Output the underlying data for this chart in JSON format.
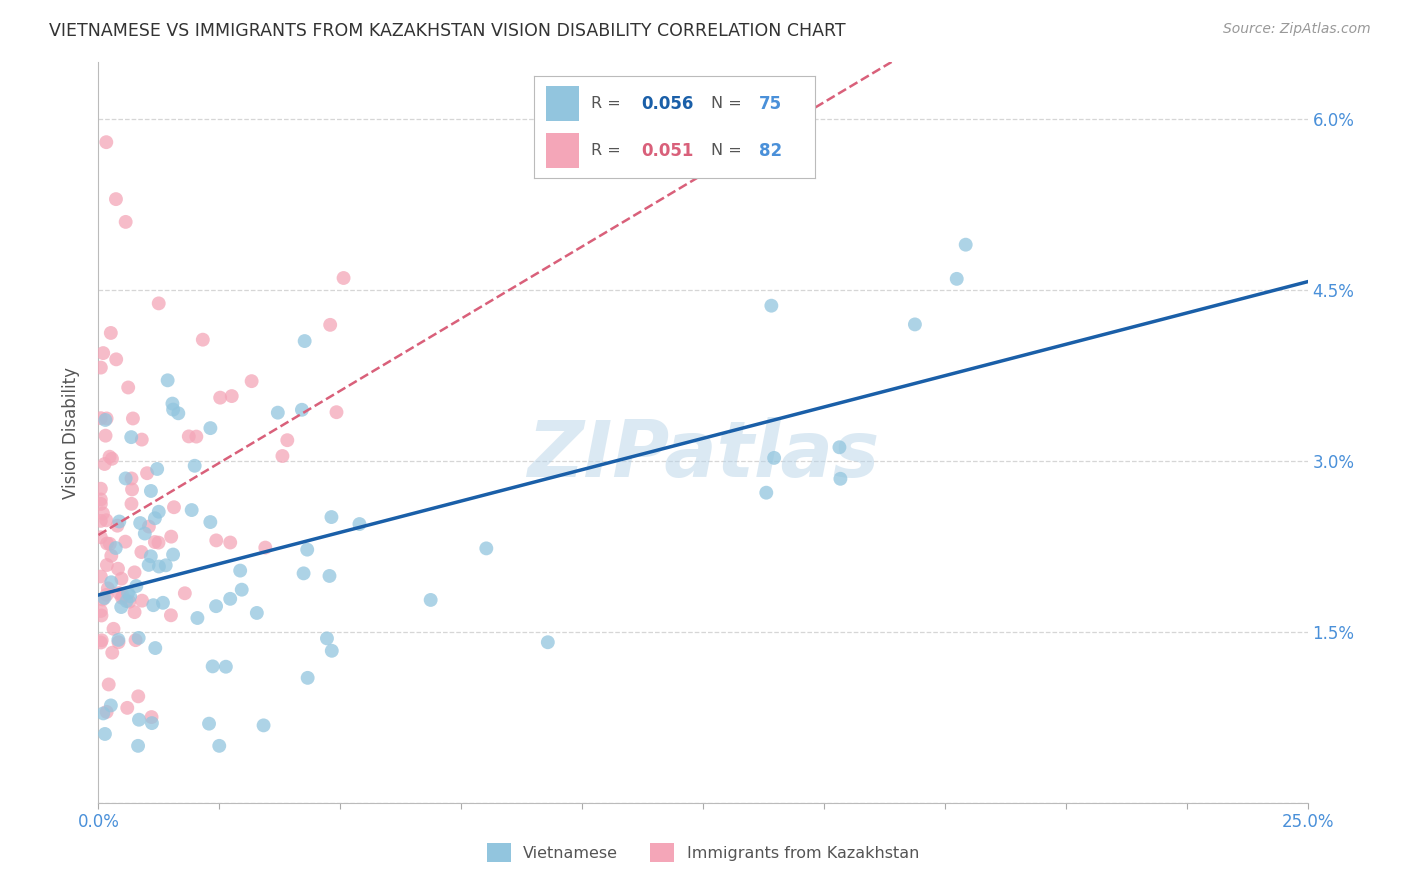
{
  "title": "VIETNAMESE VS IMMIGRANTS FROM KAZAKHSTAN VISION DISABILITY CORRELATION CHART",
  "source": "Source: ZipAtlas.com",
  "ylabel": "Vision Disability",
  "xlim": [
    0.0,
    0.25
  ],
  "ylim": [
    0.0,
    0.065
  ],
  "xticks": [
    0.0,
    0.025,
    0.05,
    0.075,
    0.1,
    0.125,
    0.15,
    0.175,
    0.2,
    0.225,
    0.25
  ],
  "yticks": [
    0.0,
    0.015,
    0.03,
    0.045,
    0.06
  ],
  "yticklabels_right": [
    "",
    "1.5%",
    "3.0%",
    "4.5%",
    "6.0%"
  ],
  "watermark": "ZIPatlas",
  "legend_r1": "0.056",
  "legend_n1": "75",
  "legend_r2": "0.051",
  "legend_n2": "82",
  "color_blue": "#92c5de",
  "color_pink": "#f4a6b8",
  "line_blue": "#1a5fa8",
  "line_pink": "#d9607a",
  "title_color": "#333333",
  "axis_label_color": "#555555",
  "tick_label_color": "#4a90d9",
  "background_color": "#ffffff",
  "grid_color": "#cccccc"
}
